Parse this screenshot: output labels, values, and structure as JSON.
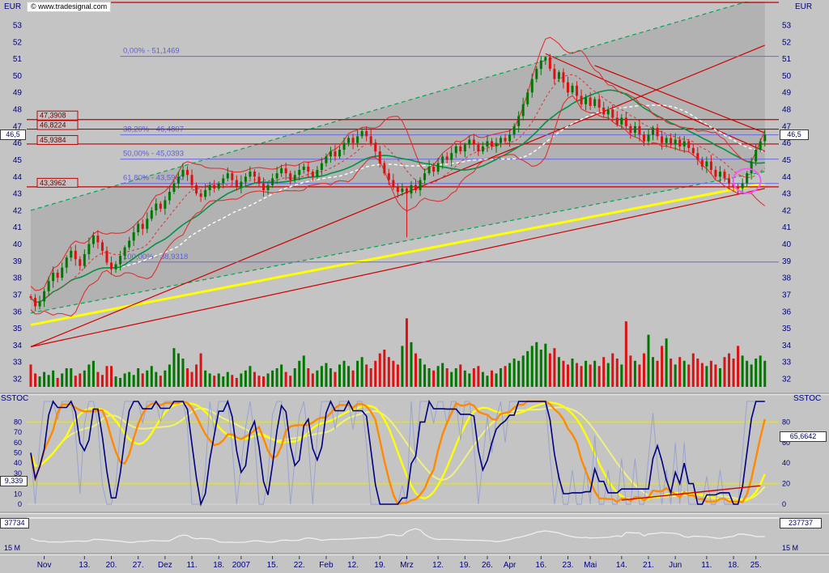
{
  "app": {
    "copyright_label": "© www.tradesignal.com",
    "currency_left": "EUR",
    "currency_right": "EUR"
  },
  "colors": {
    "background": "#c4c4c4",
    "up": "#007800",
    "down": "#dd1111",
    "level_red": "#c00000",
    "fib_blue": "#6a6ade",
    "channel_green": "#00a550",
    "yellow_ma": "#ffff00",
    "white_ma": "#ffffff",
    "green_ma": "#009344",
    "band_red": "#e03030",
    "stoch_navy": "#000080",
    "stoch_thin": "#9aa3cf",
    "stoch_orange": "#ff8a00",
    "stoch_yellow": "#ffff00",
    "stoch_yellow2": "#f0f080",
    "axis_text": "#000080",
    "annotation": "#ff50ff",
    "lower_line": "#efefef"
  },
  "chart_data": {
    "type": "candlestick",
    "title": "EUR daily chart with volume, Fibonacci retracements, trend channel and stochastic",
    "price_axis": {
      "unit": "EUR",
      "ticks": [
        53,
        52,
        51,
        50,
        49,
        48,
        47,
        46,
        45,
        44,
        43,
        42,
        41,
        40,
        39,
        38,
        37,
        36,
        35,
        34,
        33,
        32
      ],
      "current": "46,5",
      "range": [
        32,
        54.4
      ]
    },
    "x_labels": [
      {
        "t": "Nov",
        "d": 3
      },
      {
        "t": "13.",
        "d": 12
      },
      {
        "t": "20.",
        "d": 18
      },
      {
        "t": "27.",
        "d": 24
      },
      {
        "t": "Dez",
        "d": 30
      },
      {
        "t": "11.",
        "d": 36
      },
      {
        "t": "18.",
        "d": 42
      },
      {
        "t": "2007",
        "d": 47
      },
      {
        "t": "15.",
        "d": 54
      },
      {
        "t": "22.",
        "d": 60
      },
      {
        "t": "Feb",
        "d": 66
      },
      {
        "t": "12.",
        "d": 72
      },
      {
        "t": "19.",
        "d": 78
      },
      {
        "t": "Mrz",
        "d": 84
      },
      {
        "t": "12.",
        "d": 91
      },
      {
        "t": "19.",
        "d": 97
      },
      {
        "t": "26.",
        "d": 102
      },
      {
        "t": "Apr",
        "d": 107
      },
      {
        "t": "16.",
        "d": 114
      },
      {
        "t": "23.",
        "d": 120
      },
      {
        "t": "Mai",
        "d": 125
      },
      {
        "t": "14.",
        "d": 132
      },
      {
        "t": "21.",
        "d": 138
      },
      {
        "t": "Jun",
        "d": 144
      },
      {
        "t": "11.",
        "d": 151
      },
      {
        "t": "18.",
        "d": 157
      },
      {
        "t": "25.",
        "d": 162
      }
    ],
    "closes": [
      36.8,
      36.3,
      36.6,
      37.2,
      37.8,
      38.3,
      38.0,
      38.6,
      39.2,
      39.6,
      39.1,
      38.7,
      39.4,
      40.0,
      40.5,
      40.1,
      39.6,
      38.9,
      38.5,
      38.8,
      39.3,
      39.8,
      40.2,
      40.7,
      41.2,
      40.9,
      41.5,
      42.0,
      42.4,
      42.1,
      42.6,
      43.1,
      43.6,
      44.0,
      44.4,
      44.1,
      43.5,
      43.0,
      42.8,
      43.2,
      43.5,
      43.3,
      43.6,
      43.9,
      44.2,
      43.8,
      43.4,
      43.7,
      44.0,
      44.3,
      44.0,
      43.6,
      43.2,
      43.5,
      43.9,
      44.2,
      44.5,
      44.2,
      43.8,
      44.1,
      44.4,
      44.6,
      44.3,
      44.0,
      44.4,
      44.8,
      45.2,
      45.5,
      45.2,
      45.6,
      46.0,
      46.3,
      46.0,
      46.4,
      46.7,
      46.4,
      46.0,
      45.5,
      44.8,
      44.2,
      43.8,
      43.4,
      43.1,
      43.3,
      43.0,
      43.5,
      43.2,
      43.8,
      44.2,
      44.6,
      44.3,
      44.8,
      45.2,
      45.0,
      45.4,
      45.8,
      45.5,
      45.9,
      46.2,
      45.9,
      45.5,
      45.8,
      46.1,
      45.8,
      46.0,
      46.3,
      46.1,
      46.5,
      47.0,
      47.6,
      48.3,
      49.0,
      49.8,
      50.4,
      50.9,
      51.1,
      50.4,
      49.8,
      50.2,
      49.6,
      49.0,
      49.4,
      48.8,
      48.3,
      48.7,
      48.2,
      48.6,
      48.1,
      47.7,
      48.0,
      47.5,
      47.1,
      47.5,
      47.0,
      46.6,
      47.0,
      46.5,
      46.1,
      46.5,
      46.9,
      46.4,
      46.0,
      46.3,
      45.9,
      46.2,
      45.8,
      46.1,
      45.7,
      45.4,
      45.0,
      44.6,
      44.9,
      44.4,
      44.0,
      44.3,
      43.9,
      43.6,
      43.4,
      43.3,
      43.6,
      44.2,
      44.9,
      45.6,
      46.1,
      46.5
    ],
    "ohlc_rule": "open = previous close; high = max(open,close) + small wick; low = min(open,close) - small wick",
    "special_candles": [
      {
        "d": 84,
        "low": 40.4
      },
      {
        "d": 115,
        "high": 51.15
      },
      {
        "d": 158,
        "low": 42.95
      }
    ],
    "volume_rel": [
      30,
      18,
      14,
      20,
      16,
      22,
      12,
      18,
      25,
      25,
      15,
      18,
      22,
      30,
      35,
      20,
      16,
      28,
      28,
      14,
      12,
      18,
      20,
      16,
      25,
      18,
      22,
      28,
      20,
      15,
      22,
      30,
      52,
      45,
      38,
      25,
      20,
      30,
      45,
      22,
      18,
      15,
      18,
      14,
      20,
      16,
      12,
      18,
      22,
      28,
      20,
      15,
      14,
      18,
      22,
      25,
      30,
      20,
      15,
      25,
      35,
      42,
      25,
      18,
      22,
      28,
      32,
      25,
      20,
      30,
      35,
      28,
      22,
      35,
      40,
      30,
      25,
      35,
      45,
      50,
      40,
      35,
      30,
      55,
      92,
      60,
      45,
      38,
      30,
      25,
      22,
      28,
      32,
      25,
      20,
      25,
      30,
      22,
      18,
      25,
      28,
      20,
      15,
      22,
      18,
      25,
      28,
      32,
      38,
      35,
      42,
      48,
      55,
      60,
      50,
      58,
      45,
      52,
      40,
      35,
      30,
      38,
      32,
      28,
      35,
      30,
      35,
      28,
      40,
      32,
      45,
      38,
      30,
      88,
      42,
      35,
      30,
      45,
      70,
      40,
      35,
      55,
      65,
      38,
      30,
      40,
      35,
      30,
      45,
      38,
      32,
      28,
      35,
      30,
      25,
      40,
      45,
      38,
      55,
      42,
      35,
      30,
      38,
      42,
      35
    ],
    "levels": [
      {
        "label": "47,3908",
        "price": 47.3908
      },
      {
        "label": "46,8224",
        "price": 46.8224
      },
      {
        "label": "45,9384",
        "price": 45.9384
      },
      {
        "label": "43,3962",
        "price": 43.3962
      }
    ],
    "fibonacci": [
      {
        "label": "0,00% - 51,1469",
        "price": 51.1469
      },
      {
        "label": "38,20% - 46,4807",
        "price": 46.4807
      },
      {
        "label": "50,00% - 45,0393",
        "price": 45.0393
      },
      {
        "label": "61,80% - 43,5980",
        "price": 43.598
      },
      {
        "label": "100,00% - 38,9318",
        "price": 38.9318
      }
    ],
    "trendlines": {
      "yellow": {
        "d1": 0,
        "p1": 35.2,
        "d2": 164,
        "p2": 43.6
      },
      "red": [
        {
          "d1": 0,
          "p1": 33.9,
          "d2": 164,
          "p2": 43.3
        },
        {
          "d1": 0,
          "p1": 33.9,
          "d2": 164,
          "p2": 51.8
        },
        {
          "d1": 115,
          "p1": 51.3,
          "d2": 164,
          "p2": 45.5
        },
        {
          "d1": 126,
          "p1": 50.6,
          "d2": 164,
          "p2": 46.6
        }
      ],
      "channel": {
        "top": {
          "d1": 0,
          "p1": 42.0,
          "d2": 164,
          "p2": 54.7
        },
        "bottom": {
          "d1": 0,
          "p1": 35.9,
          "d2": 164,
          "p2": 44.3
        }
      }
    },
    "indicators": {
      "sma_mid": 10,
      "sma_green": 21,
      "sma_white": 34,
      "band_mult": 2.0
    },
    "annotation_circle": {
      "d": 160,
      "p": 43.75
    }
  },
  "sstoc": {
    "title_left": "SSTOC",
    "title_right": "SSTOC",
    "ticks_left": [
      80,
      70,
      60,
      50,
      40,
      30,
      10,
      0
    ],
    "ticks_right": [
      80,
      60,
      40,
      20,
      0
    ],
    "value_box": "65,6642",
    "left_box": "9,339",
    "bands": [
      80,
      20
    ],
    "params": {
      "fast": 5,
      "fast_smooth": 3,
      "slow": 14,
      "slow_smooth": 5,
      "yellow1": 8,
      "yellow2": 15
    },
    "trendline": {
      "d1": 132,
      "v1": 4,
      "d2": 163,
      "v2": 18
    }
  },
  "lower": {
    "left_value": "37734",
    "right_value": "237737",
    "left_scale": "15 M",
    "right_scale": "15 M"
  }
}
